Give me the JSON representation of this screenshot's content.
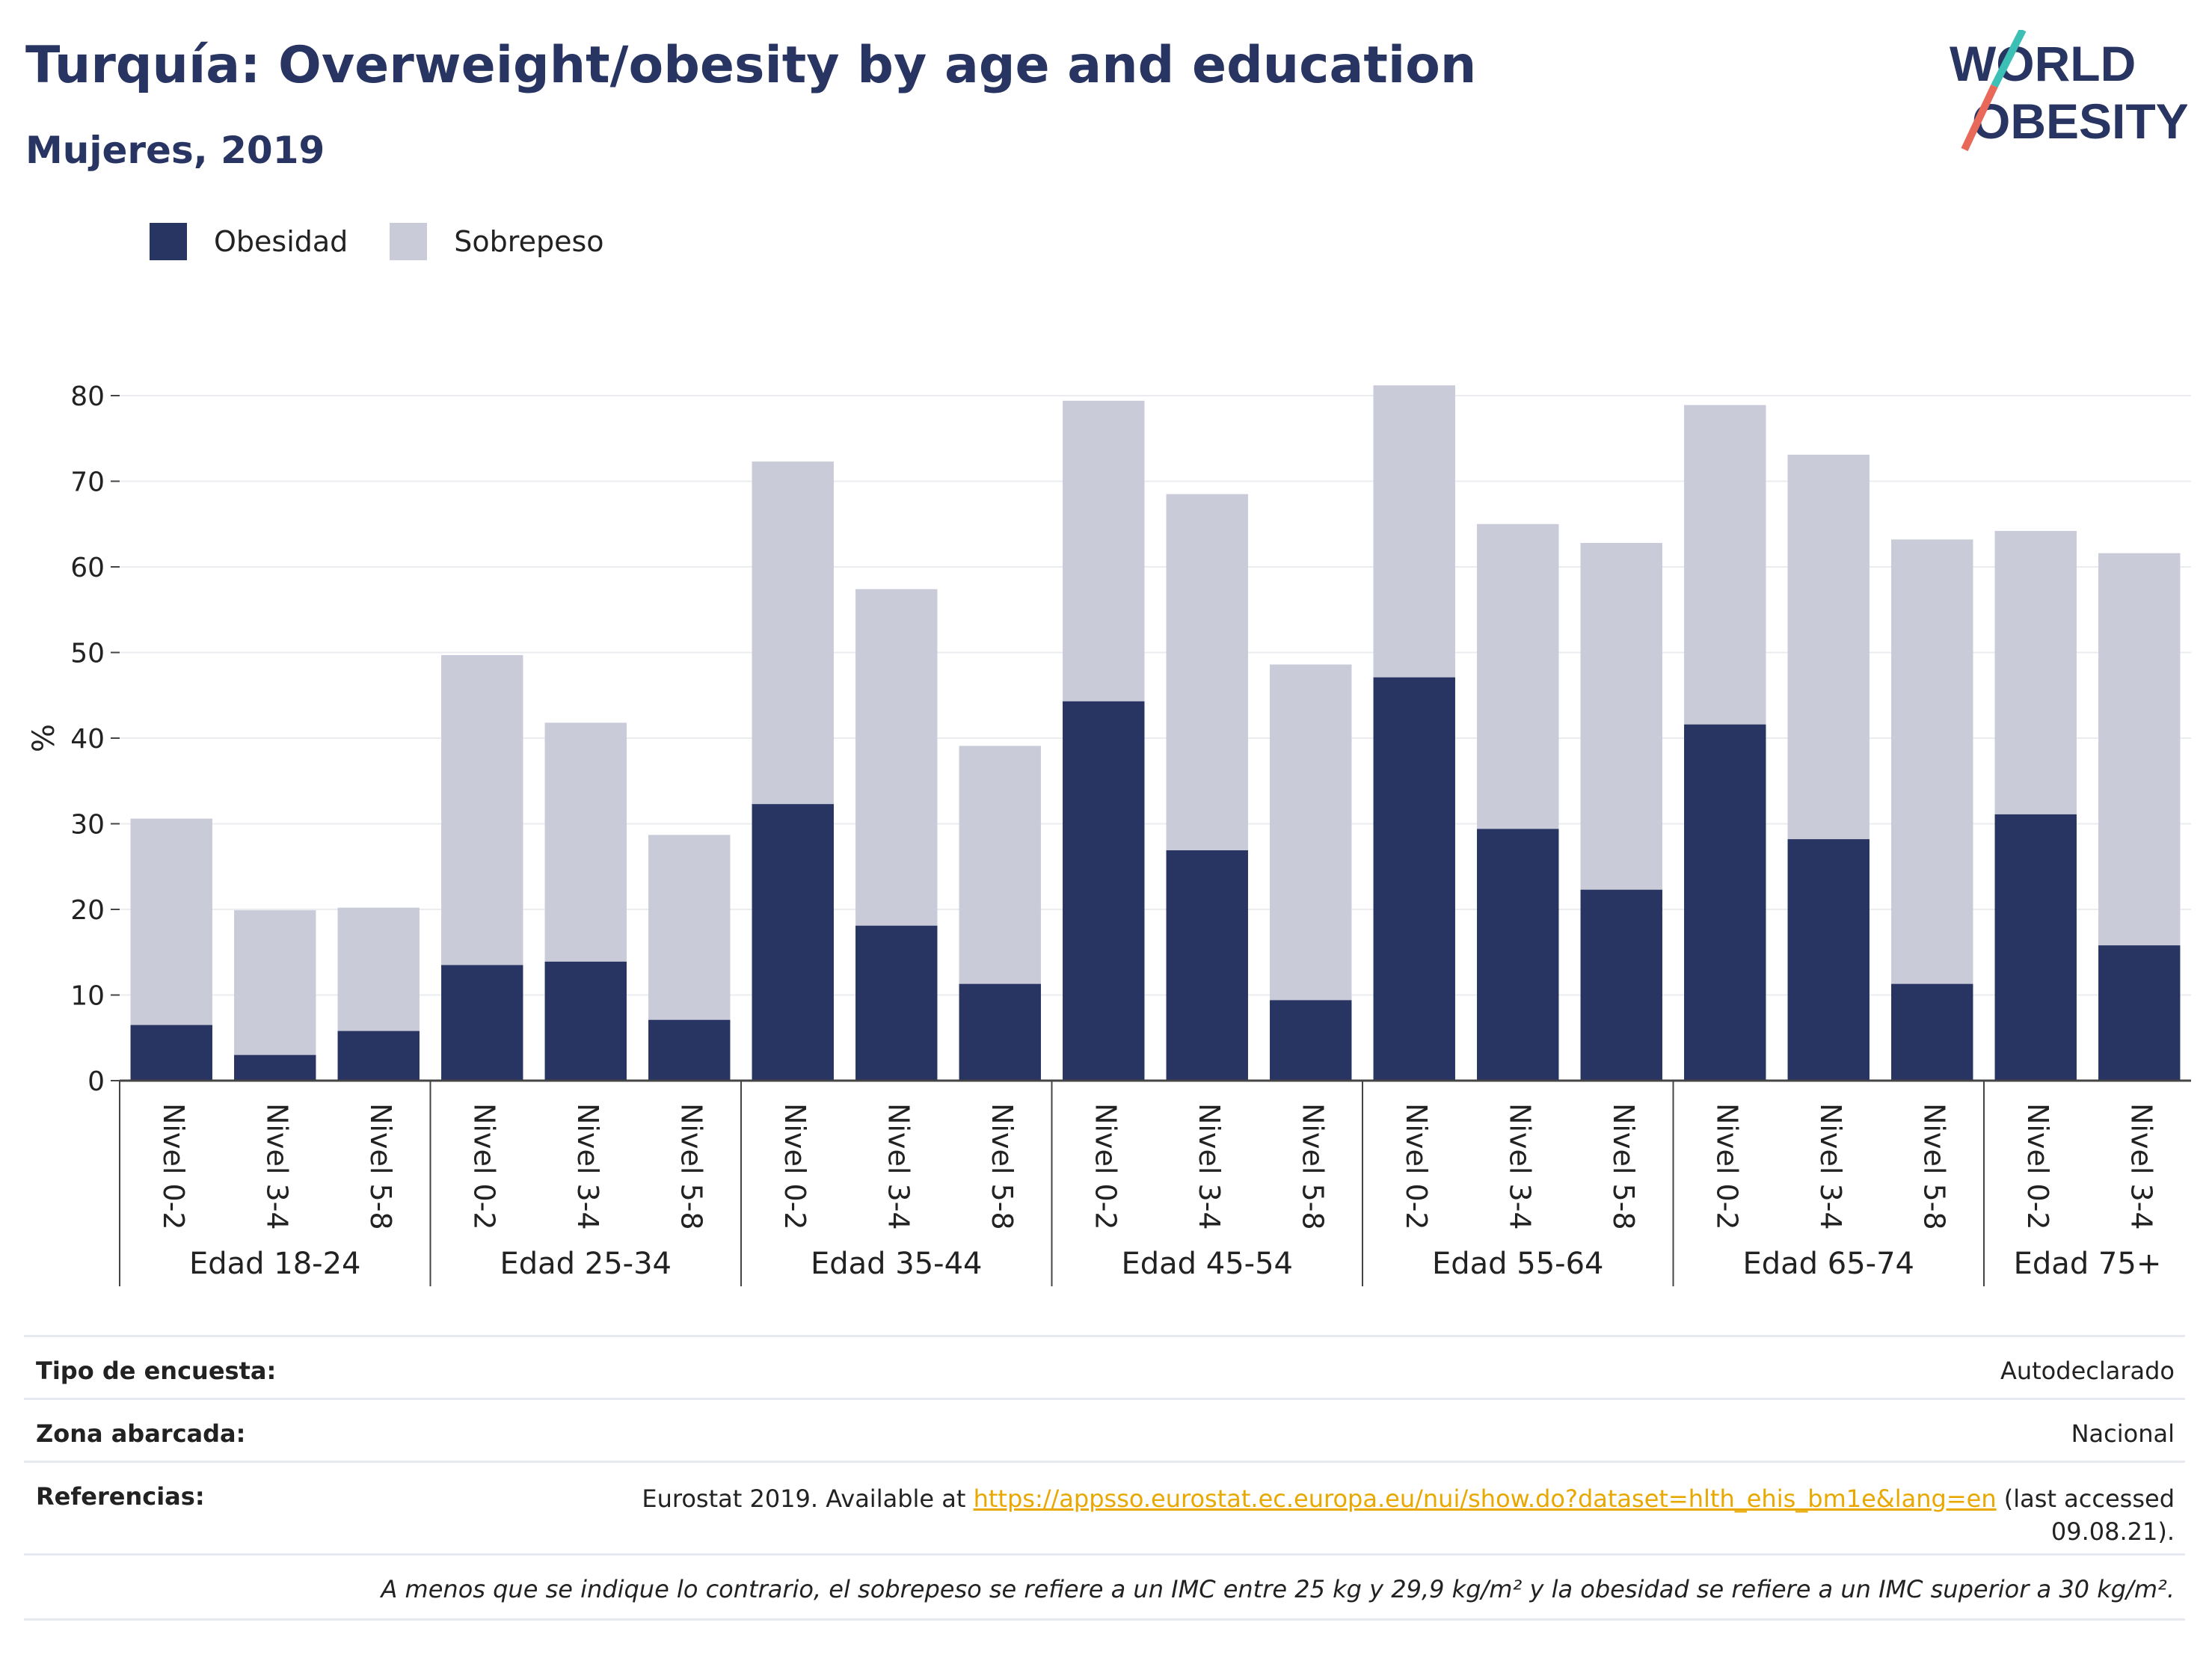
{
  "header": {
    "title": "Turquía: Overweight/obesity by age and education",
    "subtitle": "Mujeres, 2019"
  },
  "logo": {
    "line1": "WORLD",
    "line2": "OBESITY"
  },
  "colors": {
    "obesity": "#283462",
    "overweight": "#c9cbd8",
    "title": "#283462",
    "link": "#e8a800",
    "logo_slash_teal": "#3cbfb5",
    "logo_slash_red": "#e8685a"
  },
  "chart_data": {
    "type": "bar",
    "stacked": true,
    "ylabel": "%",
    "ylim": [
      0,
      85
    ],
    "yticks": [
      0,
      10,
      20,
      30,
      40,
      50,
      60,
      70,
      80
    ],
    "grid": true,
    "legend_position": "top-left",
    "groups": [
      {
        "label": "Edad 18-24",
        "categories": [
          "Nivel 0-2",
          "Nivel 3-4",
          "Nivel 5-8"
        ]
      },
      {
        "label": "Edad 25-34",
        "categories": [
          "Nivel 0-2",
          "Nivel 3-4",
          "Nivel 5-8"
        ]
      },
      {
        "label": "Edad 35-44",
        "categories": [
          "Nivel 0-2",
          "Nivel 3-4",
          "Nivel 5-8"
        ]
      },
      {
        "label": "Edad 45-54",
        "categories": [
          "Nivel 0-2",
          "Nivel 3-4",
          "Nivel 5-8"
        ]
      },
      {
        "label": "Edad 55-64",
        "categories": [
          "Nivel 0-2",
          "Nivel 3-4",
          "Nivel 5-8"
        ]
      },
      {
        "label": "Edad 65-74",
        "categories": [
          "Nivel 0-2",
          "Nivel 3-4",
          "Nivel 5-8"
        ]
      },
      {
        "label": "Edad 75+",
        "categories": [
          "Nivel 0-2",
          "Nivel 3-4"
        ]
      }
    ],
    "series": [
      {
        "name": "Obesidad",
        "values": [
          6.5,
          3.0,
          5.8,
          13.5,
          13.9,
          7.1,
          32.3,
          18.1,
          11.3,
          44.3,
          26.9,
          9.4,
          47.1,
          29.4,
          22.3,
          41.6,
          28.2,
          11.3,
          31.1,
          15.8
        ]
      },
      {
        "name": "Sobrepeso",
        "values": [
          24.1,
          16.9,
          14.4,
          36.2,
          27.9,
          21.6,
          40.0,
          39.3,
          27.8,
          35.1,
          41.6,
          39.2,
          34.1,
          35.6,
          40.5,
          37.3,
          44.9,
          51.9,
          33.1,
          45.8
        ]
      }
    ]
  },
  "info": {
    "survey_label": "Tipo de encuesta:",
    "survey_value": "Autodeclarado",
    "area_label": "Zona abarcada:",
    "area_value": "Nacional",
    "ref_label": "Referencias:",
    "ref_prefix": "Eurostat 2019. Available at ",
    "ref_link": "https://appsso.eurostat.ec.europa.eu/nui/show.do?dataset=hlth_ehis_bm1e&lang=en",
    "ref_suffix": " (last accessed",
    "ref_date": "09.08.21).",
    "note": "A menos que se indique lo contrario, el sobrepeso se refiere a un IMC entre 25 kg y 29,9 kg/m² y la obesidad se refiere a un IMC superior a 30 kg/m²."
  }
}
